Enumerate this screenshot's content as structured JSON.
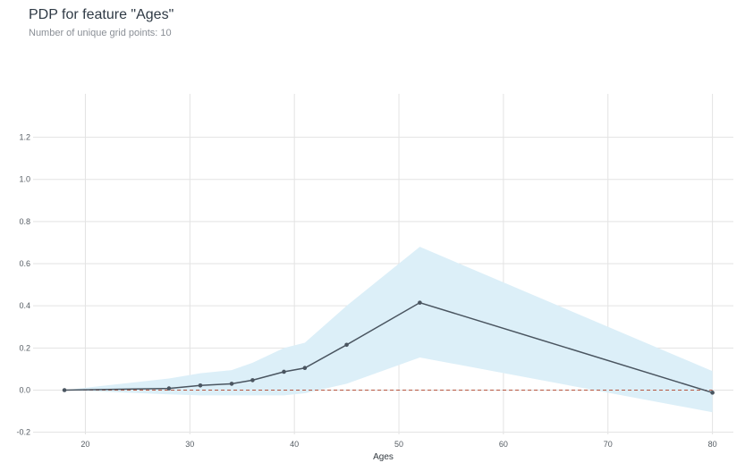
{
  "chart_data": {
    "type": "line",
    "title": "PDP for feature \"Ages\"",
    "subtitle": "Number of unique grid points: 10",
    "xlabel": "Ages",
    "ylabel": "",
    "xlim": [
      15,
      82
    ],
    "ylim": [
      -0.21,
      1.3
    ],
    "xticks": [
      20,
      30,
      40,
      50,
      60,
      70,
      80
    ],
    "yticks": [
      -0.2,
      0.0,
      0.2,
      0.4,
      0.6,
      0.8,
      1.0,
      1.2
    ],
    "grid": true,
    "baseline": 0.0,
    "series": [
      {
        "x": [
          18,
          28,
          31,
          34,
          36,
          39,
          41,
          45,
          52,
          80
        ],
        "y": [
          0.0,
          0.008,
          0.022,
          0.03,
          0.047,
          0.087,
          0.105,
          0.215,
          0.415,
          -0.012
        ],
        "upper": [
          0.0,
          0.055,
          0.08,
          0.095,
          0.13,
          0.2,
          0.225,
          0.4,
          0.68,
          0.09
        ],
        "lower": [
          0.0,
          -0.02,
          -0.025,
          -0.025,
          -0.025,
          -0.025,
          -0.015,
          0.03,
          0.155,
          -0.105
        ]
      }
    ],
    "colors": {
      "line": "#4a5560",
      "band": "#dceff8",
      "baseline": "#b5543f",
      "grid": "#e3e3e3"
    }
  }
}
